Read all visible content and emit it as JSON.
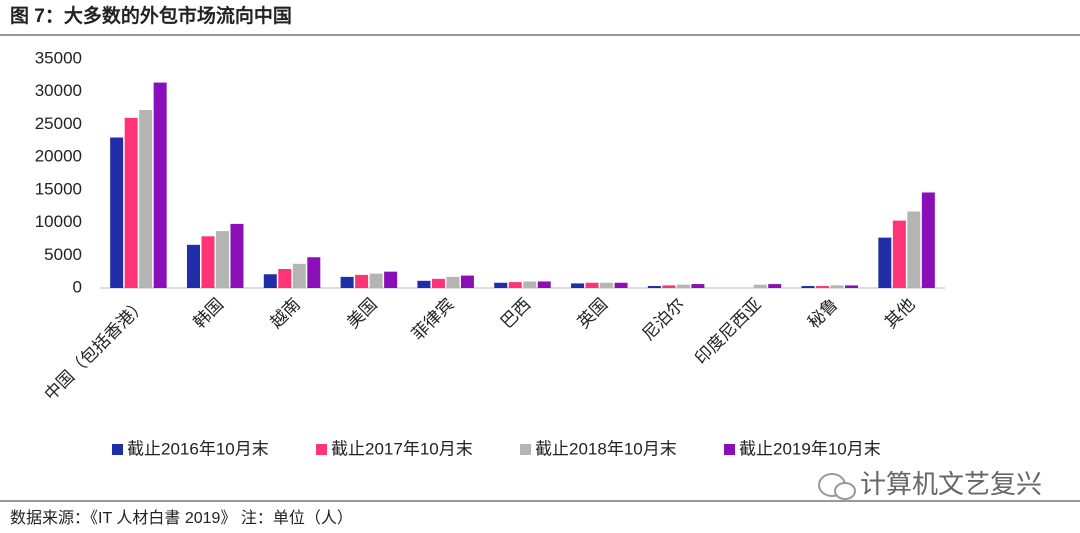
{
  "header": {
    "title": "图 7：大多数的外包市场流向中国"
  },
  "footer": {
    "source": "数据来源：《IT 人材白書 2019》 注：单位（人）"
  },
  "watermark": "计算机文艺复兴",
  "chart_data": {
    "type": "bar",
    "categories": [
      "中国（包括香港）",
      "韩国",
      "越南",
      "美国",
      "菲律宾",
      "巴西",
      "英国",
      "尼泊尔",
      "印度尼西亚",
      "秘鲁",
      "其他"
    ],
    "series": [
      {
        "name": "截止2016年10月末",
        "color": "#1f2ea8",
        "values": [
          23000,
          6600,
          2100,
          1700,
          1100,
          800,
          700,
          300,
          0,
          300,
          7700
        ]
      },
      {
        "name": "截止2017年10月末",
        "color": "#ff3377",
        "values": [
          26000,
          7900,
          2900,
          2000,
          1400,
          900,
          800,
          400,
          0,
          300,
          10300
        ]
      },
      {
        "name": "截止2018年10月末",
        "color": "#b4b4b4",
        "values": [
          27200,
          8700,
          3700,
          2200,
          1700,
          1000,
          800,
          500,
          500,
          400,
          11700
        ]
      },
      {
        "name": "截止2019年10月末",
        "color": "#8a0fb8",
        "values": [
          31400,
          9800,
          4700,
          2500,
          1900,
          1000,
          800,
          600,
          600,
          400,
          14600
        ]
      }
    ],
    "ylim": [
      0,
      35000
    ],
    "yticks": [
      0,
      5000,
      10000,
      15000,
      20000,
      25000,
      30000,
      35000
    ],
    "grid": false
  }
}
